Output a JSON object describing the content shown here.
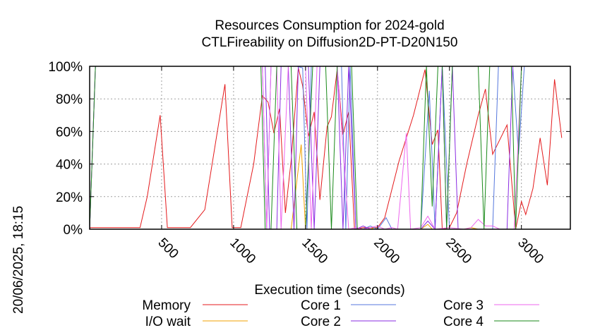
{
  "chart_data": {
    "type": "line",
    "title": [
      "Resources Consumption for 2024-gold",
      "CTLFireability on Diffusion2D-PT-D20N150"
    ],
    "xlabel": "Execution time (seconds)",
    "ylabel": "",
    "side_label": "20/06/2025, 18:15",
    "xlim": [
      0,
      3340
    ],
    "ylim": [
      0,
      100
    ],
    "y_ticks": [
      0,
      20,
      40,
      60,
      80,
      100
    ],
    "y_tick_labels": [
      "0%",
      "20%",
      "40%",
      "60%",
      "80%",
      "100%"
    ],
    "x_ticks": [
      500,
      1000,
      1500,
      2000,
      2500,
      3000
    ],
    "x_tick_labels": [
      "500",
      "1000",
      "1500",
      "2000",
      "2500",
      "3000"
    ],
    "grid": true,
    "legend_position": "bottom",
    "series": [
      {
        "name": "Memory",
        "color": "#e41a1c",
        "points": [
          [
            0,
            0
          ],
          [
            5,
            1
          ],
          [
            50,
            1
          ],
          [
            100,
            1
          ],
          [
            200,
            1
          ],
          [
            350,
            1
          ],
          [
            400,
            20
          ],
          [
            490,
            70
          ],
          [
            540,
            1
          ],
          [
            700,
            1
          ],
          [
            800,
            12
          ],
          [
            940,
            89
          ],
          [
            990,
            1
          ],
          [
            1050,
            1
          ],
          [
            1140,
            40
          ],
          [
            1200,
            82
          ],
          [
            1240,
            78
          ],
          [
            1280,
            59
          ],
          [
            1320,
            74
          ],
          [
            1360,
            10
          ],
          [
            1400,
            42
          ],
          [
            1450,
            99
          ],
          [
            1480,
            88
          ],
          [
            1520,
            57
          ],
          [
            1560,
            72
          ],
          [
            1600,
            18
          ],
          [
            1650,
            63
          ],
          [
            1680,
            69
          ],
          [
            1720,
            98
          ],
          [
            1760,
            58
          ],
          [
            1800,
            72
          ],
          [
            1840,
            0
          ],
          [
            1900,
            1
          ],
          [
            1950,
            1
          ],
          [
            2000,
            1
          ],
          [
            2050,
            7
          ],
          [
            2150,
            42
          ],
          [
            2250,
            70
          ],
          [
            2330,
            98
          ],
          [
            2380,
            52
          ],
          [
            2420,
            61
          ],
          [
            2450,
            0
          ],
          [
            2500,
            1
          ],
          [
            2550,
            10
          ],
          [
            2620,
            40
          ],
          [
            2700,
            70
          ],
          [
            2750,
            86
          ],
          [
            2800,
            46
          ],
          [
            2900,
            64
          ],
          [
            2960,
            0
          ],
          [
            3000,
            17
          ],
          [
            3030,
            9
          ],
          [
            3080,
            25
          ],
          [
            3130,
            56
          ],
          [
            3180,
            27
          ],
          [
            3230,
            92
          ],
          [
            3280,
            56
          ]
        ]
      },
      {
        "name": "I/O wait",
        "color": "#f0a000",
        "points": [
          [
            0,
            0
          ],
          [
            1400,
            0
          ],
          [
            1470,
            52
          ],
          [
            1500,
            0
          ],
          [
            1950,
            0
          ],
          [
            1980,
            1
          ],
          [
            2000,
            0
          ],
          [
            2300,
            0
          ],
          [
            2350,
            3
          ],
          [
            2380,
            0
          ],
          [
            2600,
            0
          ],
          [
            2650,
            1
          ],
          [
            2700,
            0
          ],
          [
            3340,
            0
          ]
        ]
      },
      {
        "name": "Core 1",
        "color": "#5577dd",
        "points": [
          [
            0,
            0
          ],
          [
            40,
            100
          ],
          [
            1200,
            100
          ],
          [
            1230,
            0
          ],
          [
            1260,
            100
          ],
          [
            1400,
            100
          ],
          [
            1440,
            100
          ],
          [
            1480,
            99
          ],
          [
            1510,
            0
          ],
          [
            1540,
            100
          ],
          [
            1750,
            100
          ],
          [
            1780,
            0
          ],
          [
            1810,
            100
          ],
          [
            1850,
            0
          ],
          [
            1900,
            0
          ],
          [
            1950,
            2
          ],
          [
            2000,
            0
          ],
          [
            2060,
            7
          ],
          [
            2100,
            0
          ],
          [
            2300,
            0
          ],
          [
            2360,
            85
          ],
          [
            2400,
            0
          ],
          [
            2450,
            100
          ],
          [
            2500,
            0
          ],
          [
            2550,
            0
          ],
          [
            2800,
            0
          ],
          [
            2840,
            100
          ],
          [
            2940,
            100
          ],
          [
            2980,
            46
          ],
          [
            3020,
            100
          ],
          [
            3340,
            100
          ]
        ]
      },
      {
        "name": "Core 2",
        "color": "#8a2be2",
        "points": [
          [
            0,
            0
          ],
          [
            40,
            100
          ],
          [
            1200,
            100
          ],
          [
            1220,
            100
          ],
          [
            1250,
            0
          ],
          [
            1300,
            0
          ],
          [
            1330,
            100
          ],
          [
            1380,
            100
          ],
          [
            1420,
            0
          ],
          [
            1450,
            100
          ],
          [
            1520,
            100
          ],
          [
            1560,
            0
          ],
          [
            1600,
            100
          ],
          [
            1720,
            100
          ],
          [
            1760,
            0
          ],
          [
            1800,
            100
          ],
          [
            1850,
            0
          ],
          [
            1900,
            2
          ],
          [
            1950,
            0
          ],
          [
            2000,
            0
          ],
          [
            2300,
            0
          ],
          [
            2350,
            5
          ],
          [
            2400,
            0
          ],
          [
            2450,
            100
          ],
          [
            2480,
            0
          ],
          [
            2520,
            100
          ],
          [
            2560,
            0
          ],
          [
            2900,
            0
          ],
          [
            2940,
            100
          ],
          [
            3000,
            100
          ],
          [
            3340,
            100
          ]
        ]
      },
      {
        "name": "Core 3",
        "color": "#ee66ee",
        "points": [
          [
            0,
            0
          ],
          [
            40,
            100
          ],
          [
            1200,
            100
          ],
          [
            1230,
            0
          ],
          [
            1260,
            100
          ],
          [
            1300,
            100
          ],
          [
            1330,
            0
          ],
          [
            1380,
            100
          ],
          [
            1500,
            100
          ],
          [
            1540,
            0
          ],
          [
            1580,
            100
          ],
          [
            1720,
            100
          ],
          [
            1760,
            50
          ],
          [
            1800,
            0
          ],
          [
            1850,
            1
          ],
          [
            1900,
            0
          ],
          [
            2000,
            2
          ],
          [
            2050,
            0
          ],
          [
            2100,
            1
          ],
          [
            2140,
            0
          ],
          [
            2200,
            59
          ],
          [
            2230,
            0
          ],
          [
            2300,
            1
          ],
          [
            2350,
            8
          ],
          [
            2400,
            0
          ],
          [
            2500,
            1
          ],
          [
            2600,
            0
          ],
          [
            2650,
            1
          ],
          [
            2700,
            6
          ],
          [
            2750,
            2
          ],
          [
            2800,
            2
          ],
          [
            2850,
            0
          ],
          [
            2950,
            0
          ],
          [
            3000,
            100
          ],
          [
            3340,
            100
          ]
        ]
      },
      {
        "name": "Core 4",
        "color": "#1a8a1a",
        "points": [
          [
            0,
            0
          ],
          [
            40,
            100
          ],
          [
            1150,
            100
          ],
          [
            1190,
            100
          ],
          [
            1220,
            0
          ],
          [
            1260,
            0
          ],
          [
            1300,
            100
          ],
          [
            1400,
            100
          ],
          [
            1440,
            0
          ],
          [
            1500,
            0
          ],
          [
            1550,
            100
          ],
          [
            1640,
            100
          ],
          [
            1680,
            0
          ],
          [
            1720,
            100
          ],
          [
            1820,
            100
          ],
          [
            1860,
            0
          ],
          [
            1900,
            0
          ],
          [
            2300,
            0
          ],
          [
            2340,
            100
          ],
          [
            2380,
            14
          ],
          [
            2420,
            100
          ],
          [
            2450,
            100
          ],
          [
            2480,
            0
          ],
          [
            2520,
            100
          ],
          [
            2700,
            100
          ],
          [
            2740,
            0
          ],
          [
            2780,
            100
          ],
          [
            2930,
            100
          ],
          [
            2960,
            0
          ],
          [
            3000,
            100
          ],
          [
            3340,
            100
          ]
        ]
      }
    ]
  }
}
